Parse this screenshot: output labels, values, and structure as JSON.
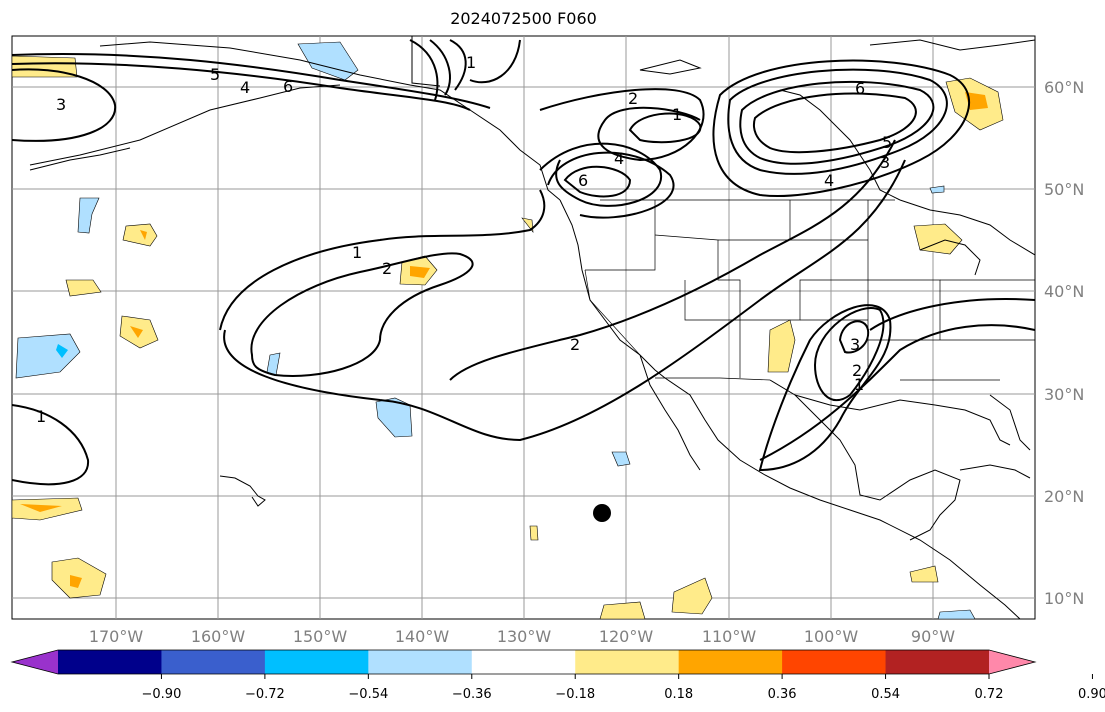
{
  "title": "2024072500 F060",
  "lat_labels": [
    "60°N",
    "50°N",
    "40°N",
    "30°N",
    "20°N",
    "10°N"
  ],
  "lon_labels": [
    "170°W",
    "160°W",
    "150°W",
    "140°W",
    "130°W",
    "120°W",
    "110°W",
    "100°W",
    "90°W"
  ],
  "colorbar": {
    "ticks": [
      "−0.90",
      "−0.72",
      "−0.54",
      "−0.36",
      "−0.18",
      "0.18",
      "0.36",
      "0.54",
      "0.72",
      "0.90"
    ],
    "colors": [
      "#9932cc",
      "#00008b",
      "#3a5fcd",
      "#00bfff",
      "#b0e0ff",
      "#ffffff",
      "#ffeb8a",
      "#ffa500",
      "#ff4500",
      "#b22222",
      "#ff88aa"
    ]
  },
  "contour_labels": [
    "1",
    "2",
    "3",
    "4",
    "5",
    "6"
  ],
  "colors": {
    "contour": "#000000",
    "coast": "#000000",
    "grid": "#999999",
    "fill_positive_1": "#ffeb8a",
    "fill_positive_2": "#ffa500",
    "fill_negative_1": "#b0e0ff",
    "fill_negative_2": "#00bfff"
  }
}
